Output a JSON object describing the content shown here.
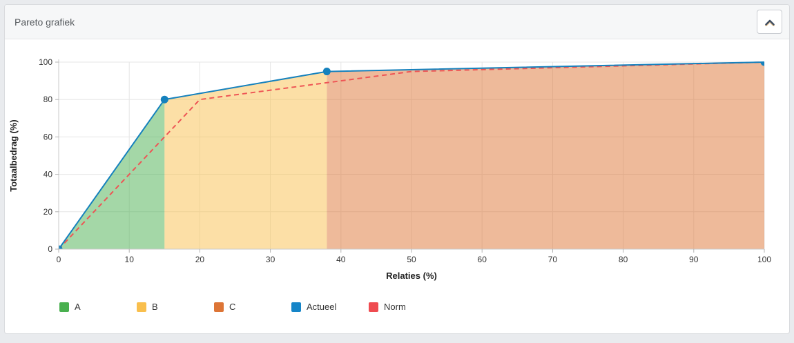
{
  "panel": {
    "title": "Pareto grafiek",
    "collapse_button": {
      "icon": "chevron-up",
      "icon_color": "#3f4e61"
    }
  },
  "chart_data": {
    "type": "area",
    "title": "Pareto grafiek",
    "xlabel": "Relaties (%)",
    "ylabel": "Totaalbedrag (%)",
    "xlim": [
      0,
      100
    ],
    "ylim": [
      0,
      100
    ],
    "x_ticks": [
      0,
      10,
      20,
      30,
      40,
      50,
      60,
      70,
      80,
      90,
      100
    ],
    "y_ticks": [
      0,
      20,
      40,
      60,
      80,
      100
    ],
    "grid": true,
    "series": [
      {
        "name": "Actueel",
        "style": "solid",
        "color": "#1581bd",
        "markers": true,
        "points": [
          [
            0,
            0
          ],
          [
            15,
            80
          ],
          [
            38,
            95
          ],
          [
            100,
            100
          ]
        ]
      },
      {
        "name": "Norm",
        "style": "dashed",
        "color": "#ee5555",
        "markers": false,
        "points": [
          [
            0,
            0
          ],
          [
            20,
            80
          ],
          [
            50,
            95
          ],
          [
            100,
            100
          ]
        ]
      }
    ],
    "areas": [
      {
        "name": "A",
        "color": "#49b04f",
        "x_start": 0,
        "x_end": 15
      },
      {
        "name": "B",
        "color": "#f9bf4d",
        "x_start": 15,
        "x_end": 38
      },
      {
        "name": "C",
        "color": "#dd7536",
        "x_start": 38,
        "x_end": 100
      }
    ],
    "legend": [
      {
        "label": "A",
        "color": "#49b04f"
      },
      {
        "label": "B",
        "color": "#f9bf4d"
      },
      {
        "label": "C",
        "color": "#dd7536"
      },
      {
        "label": "Actueel",
        "color": "#1585c8"
      },
      {
        "label": "Norm",
        "color": "#ef4b50"
      }
    ],
    "legend_position": "bottom",
    "colors": {
      "axis": "#c8c8c8",
      "grid": "#e5e5e5",
      "tick": "#b3b3b3",
      "tick_label": "#333333",
      "axis_title": "#222222"
    }
  }
}
